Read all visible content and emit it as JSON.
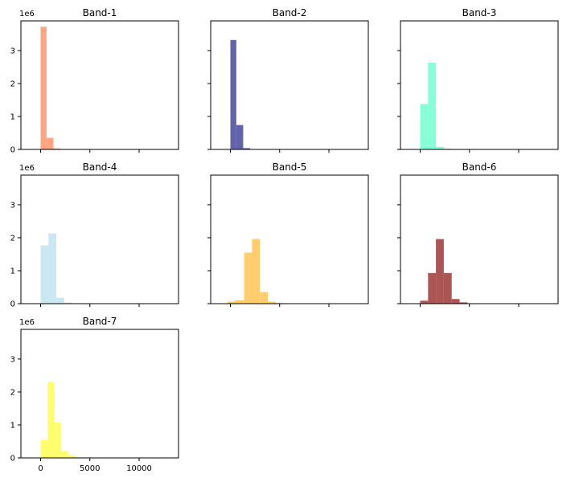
{
  "chart_data": {
    "type": "bar",
    "layout": "3x3 grid of histograms, shared x and y axes",
    "shared_x": {
      "xlim": [
        -2000,
        14000
      ],
      "ticks": [
        0,
        5000,
        10000
      ],
      "tick_labels": [
        "0",
        "5000",
        "10000"
      ]
    },
    "shared_y": {
      "ylim": [
        0,
        3.9
      ],
      "ticks": [
        0,
        1,
        2,
        3
      ],
      "tick_labels": [
        "0",
        "1",
        "2",
        "3"
      ],
      "exponent_label": "1e6"
    },
    "panels": [
      {
        "title": "Band-1",
        "color": "#FFA07A",
        "bins": [
          {
            "x0": 0,
            "x1": 600,
            "y": 3.72
          },
          {
            "x0": 600,
            "x1": 1300,
            "y": 0.35
          },
          {
            "x0": 1300,
            "x1": 2000,
            "y": 0.03
          }
        ]
      },
      {
        "title": "Band-2",
        "color": "#5B5BA8",
        "bins": [
          {
            "x0": 0,
            "x1": 600,
            "y": 3.32
          },
          {
            "x0": 600,
            "x1": 1300,
            "y": 0.74
          },
          {
            "x0": 1300,
            "x1": 2000,
            "y": 0.04
          }
        ]
      },
      {
        "title": "Band-3",
        "color": "#7FFFD4",
        "bins": [
          {
            "x0": 0,
            "x1": 800,
            "y": 1.38
          },
          {
            "x0": 800,
            "x1": 1600,
            "y": 2.63
          },
          {
            "x0": 1600,
            "x1": 2400,
            "y": 0.08
          },
          {
            "x0": 2400,
            "x1": 3200,
            "y": 0.02
          }
        ]
      },
      {
        "title": "Band-4",
        "color": "#C8E6F0",
        "bins": [
          {
            "x0": 0,
            "x1": 800,
            "y": 1.77
          },
          {
            "x0": 800,
            "x1": 1600,
            "y": 2.13
          },
          {
            "x0": 1600,
            "x1": 2400,
            "y": 0.18
          },
          {
            "x0": 2400,
            "x1": 3200,
            "y": 0.03
          }
        ]
      },
      {
        "title": "Band-5",
        "color": "#FFC966",
        "bins": [
          {
            "x0": -300,
            "x1": 400,
            "y": 0.06
          },
          {
            "x0": 400,
            "x1": 1400,
            "y": 0.1
          },
          {
            "x0": 1400,
            "x1": 2200,
            "y": 1.55
          },
          {
            "x0": 2200,
            "x1": 3000,
            "y": 1.96
          },
          {
            "x0": 3000,
            "x1": 3800,
            "y": 0.35
          },
          {
            "x0": 3800,
            "x1": 4600,
            "y": 0.06
          },
          {
            "x0": 4600,
            "x1": 5400,
            "y": 0.02
          }
        ]
      },
      {
        "title": "Band-6",
        "color": "#A84C4C",
        "bins": [
          {
            "x0": 0,
            "x1": 800,
            "y": 0.09
          },
          {
            "x0": 800,
            "x1": 1600,
            "y": 0.93
          },
          {
            "x0": 1600,
            "x1": 2400,
            "y": 1.96
          },
          {
            "x0": 2400,
            "x1": 3200,
            "y": 0.93
          },
          {
            "x0": 3200,
            "x1": 4000,
            "y": 0.14
          },
          {
            "x0": 4000,
            "x1": 4800,
            "y": 0.04
          }
        ]
      },
      {
        "title": "Band-7",
        "color": "#FFFF66",
        "bins": [
          {
            "x0": 0,
            "x1": 700,
            "y": 0.54
          },
          {
            "x0": 700,
            "x1": 1400,
            "y": 2.3
          },
          {
            "x0": 1400,
            "x1": 2100,
            "y": 1.07
          },
          {
            "x0": 2100,
            "x1": 2800,
            "y": 0.2
          },
          {
            "x0": 2800,
            "x1": 3500,
            "y": 0.08
          },
          {
            "x0": 3500,
            "x1": 4200,
            "y": 0.03
          },
          {
            "x0": 4200,
            "x1": 4900,
            "y": 0.02
          }
        ]
      }
    ]
  }
}
